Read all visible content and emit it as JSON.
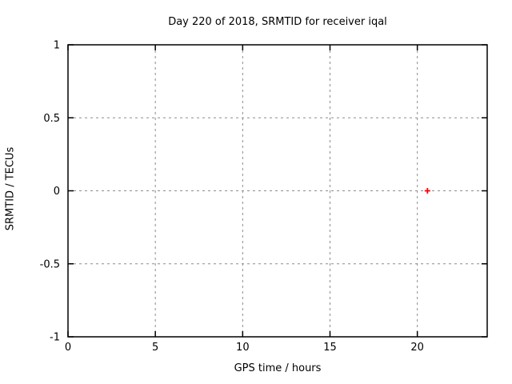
{
  "window": {
    "background": "#ffffff",
    "text_color": "#000000"
  },
  "chart_data": {
    "type": "scatter",
    "title": "Day 220 of 2018, SRMTID for receiver iqal",
    "xlabel": "GPS time / hours",
    "ylabel": "SRMTID / TECUs",
    "xlim": [
      0,
      24
    ],
    "ylim": [
      -1,
      1
    ],
    "xticks": [
      0,
      5,
      10,
      15,
      20
    ],
    "xtick_labels": [
      "0",
      "5",
      "10",
      "15",
      "20"
    ],
    "yticks": [
      -1,
      -0.5,
      0,
      0.5,
      1
    ],
    "ytick_labels": [
      "-1",
      "-0.5",
      "0",
      "0.5",
      "1"
    ],
    "grid": true,
    "grid_color": "#8c8c8c",
    "axis_color": "#000000",
    "legend": "none",
    "series": [
      {
        "name": "srmtid",
        "marker": "plus",
        "color": "#ff0000",
        "points": [
          {
            "x": 20.58,
            "y": 0.0
          }
        ]
      }
    ]
  }
}
